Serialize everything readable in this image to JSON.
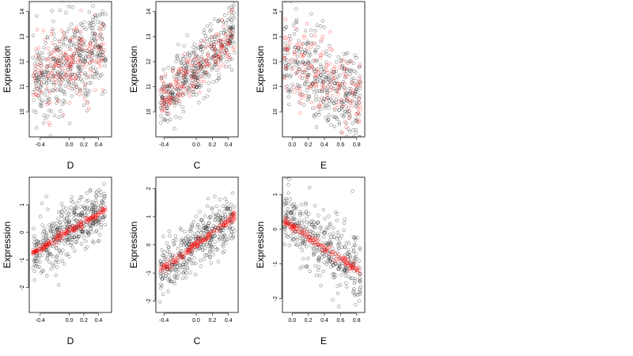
{
  "figure": {
    "point_colors": {
      "observed": "#000000",
      "fitted": "#ff0000"
    }
  },
  "chart_data": [
    {
      "type": "scatter",
      "row": 0,
      "col": 0,
      "xlabel": "D",
      "ylabel": "Expression",
      "xlim": [
        -0.55,
        0.58
      ],
      "ylim": [
        9.0,
        14.4
      ],
      "xticks": [
        -0.4,
        0.0,
        0.2,
        0.4
      ],
      "xtick_labels": [
        "-0.4",
        "0.0",
        "0.2",
        "0.4"
      ],
      "yticks": [
        10,
        11,
        12,
        13,
        14
      ],
      "ytick_labels": [
        "10",
        "11",
        "12",
        "13",
        "14"
      ],
      "series": [
        {
          "role": "observed",
          "color": "#000000",
          "marker": "open-circle",
          "trend": {
            "x0": -0.5,
            "y0": 11.2,
            "x1": 0.5,
            "y1": 12.6
          },
          "spread": 0.95,
          "n": 420
        },
        {
          "role": "fitted",
          "color": "#ff0000",
          "marker": "open-circle",
          "trend": {
            "x0": -0.5,
            "y0": 11.2,
            "x1": 0.5,
            "y1": 12.6
          },
          "spread": 0.8,
          "n": 190
        }
      ]
    },
    {
      "type": "scatter",
      "row": 0,
      "col": 1,
      "xlabel": "C",
      "ylabel": "Expression",
      "xlim": [
        -0.5,
        0.52
      ],
      "ylim": [
        9.0,
        14.4
      ],
      "xticks": [
        -0.4,
        0.0,
        0.2,
        0.4
      ],
      "xtick_labels": [
        "-0.4",
        "0.0",
        "0.2",
        "0.4"
      ],
      "yticks": [
        10,
        11,
        12,
        13,
        14
      ],
      "ytick_labels": [
        "10",
        "11",
        "12",
        "13",
        "14"
      ],
      "series": [
        {
          "role": "observed",
          "color": "#000000",
          "marker": "open-circle",
          "trend": {
            "x0": -0.45,
            "y0": 10.4,
            "x1": 0.48,
            "y1": 13.1
          },
          "spread": 0.6,
          "n": 400
        },
        {
          "role": "fitted",
          "color": "#ff0000",
          "marker": "open-circle",
          "trend": {
            "x0": -0.45,
            "y0": 10.5,
            "x1": 0.48,
            "y1": 13.0
          },
          "spread": 0.45,
          "n": 180
        }
      ]
    },
    {
      "type": "scatter",
      "row": 0,
      "col": 2,
      "xlabel": "E",
      "ylabel": "Expression",
      "xlim": [
        -0.12,
        0.9
      ],
      "ylim": [
        9.0,
        14.4
      ],
      "xticks": [
        0.0,
        0.2,
        0.4,
        0.6,
        0.8
      ],
      "xtick_labels": [
        "0.0",
        "0.2",
        "0.4",
        "0.6",
        "0.8"
      ],
      "yticks": [
        10,
        11,
        12,
        13,
        14
      ],
      "ytick_labels": [
        "10",
        "11",
        "12",
        "13",
        "14"
      ],
      "series": [
        {
          "role": "observed",
          "color": "#000000",
          "marker": "open-circle",
          "trend": {
            "x0": -0.1,
            "y0": 12.2,
            "x1": 0.85,
            "y1": 10.4
          },
          "spread": 0.95,
          "n": 380
        },
        {
          "role": "fitted",
          "color": "#ff0000",
          "marker": "open-circle",
          "trend": {
            "x0": -0.1,
            "y0": 12.3,
            "x1": 0.85,
            "y1": 10.5
          },
          "spread": 0.7,
          "n": 170
        }
      ]
    },
    {
      "type": "scatter",
      "row": 1,
      "col": 0,
      "xlabel": "D",
      "ylabel": "Expression",
      "xlim": [
        -0.55,
        0.58
      ],
      "ylim": [
        -2.9,
        2.0
      ],
      "xticks": [
        -0.4,
        0.0,
        0.2,
        0.4
      ],
      "xtick_labels": [
        "-0.4",
        "0.0",
        "0.2",
        "0.4"
      ],
      "yticks": [
        -2,
        -1,
        0,
        1
      ],
      "ytick_labels": [
        "-2",
        "-1",
        "0",
        "1"
      ],
      "series": [
        {
          "role": "observed",
          "color": "#000000",
          "marker": "open-circle",
          "trend": {
            "x0": -0.5,
            "y0": -0.8,
            "x1": 0.5,
            "y1": 0.9
          },
          "spread": 0.5,
          "n": 420
        },
        {
          "role": "fitted",
          "color": "#ff0000",
          "marker": "open-circle",
          "trend": {
            "x0": -0.5,
            "y0": -0.75,
            "x1": 0.5,
            "y1": 0.85
          },
          "spread": 0.07,
          "n": 190
        }
      ]
    },
    {
      "type": "scatter",
      "row": 1,
      "col": 1,
      "xlabel": "C",
      "ylabel": "Expression",
      "xlim": [
        -0.5,
        0.52
      ],
      "ylim": [
        -2.4,
        2.4
      ],
      "xticks": [
        -0.4,
        0.0,
        0.2,
        0.4
      ],
      "xtick_labels": [
        "-0.4",
        "0.0",
        "0.2",
        "0.4"
      ],
      "yticks": [
        -2,
        -1,
        0,
        1,
        2
      ],
      "ytick_labels": [
        "-2",
        "-1",
        "0",
        "1",
        "2"
      ],
      "series": [
        {
          "role": "observed",
          "color": "#000000",
          "marker": "open-circle",
          "trend": {
            "x0": -0.45,
            "y0": -1.0,
            "x1": 0.48,
            "y1": 1.1
          },
          "spread": 0.45,
          "n": 400
        },
        {
          "role": "fitted",
          "color": "#ff0000",
          "marker": "open-circle",
          "trend": {
            "x0": -0.45,
            "y0": -0.95,
            "x1": 0.48,
            "y1": 1.05
          },
          "spread": 0.07,
          "n": 180
        }
      ]
    },
    {
      "type": "scatter",
      "row": 1,
      "col": 2,
      "xlabel": "E",
      "ylabel": "Expression",
      "xlim": [
        -0.12,
        0.9
      ],
      "ylim": [
        -2.4,
        1.5
      ],
      "xticks": [
        0.0,
        0.2,
        0.4,
        0.6,
        0.8
      ],
      "xtick_labels": [
        "0.0",
        "0.2",
        "0.4",
        "0.6",
        "0.8"
      ],
      "yticks": [
        -2,
        -1,
        0,
        1
      ],
      "ytick_labels": [
        "-2",
        "-1",
        "0",
        "1"
      ],
      "series": [
        {
          "role": "observed",
          "color": "#000000",
          "marker": "open-circle",
          "trend": {
            "x0": -0.1,
            "y0": 0.3,
            "x1": 0.85,
            "y1": -1.2
          },
          "spread": 0.5,
          "n": 380
        },
        {
          "role": "fitted",
          "color": "#ff0000",
          "marker": "open-circle",
          "trend": {
            "x0": -0.1,
            "y0": 0.25,
            "x1": 0.85,
            "y1": -1.25
          },
          "spread": 0.07,
          "n": 170
        }
      ]
    }
  ]
}
